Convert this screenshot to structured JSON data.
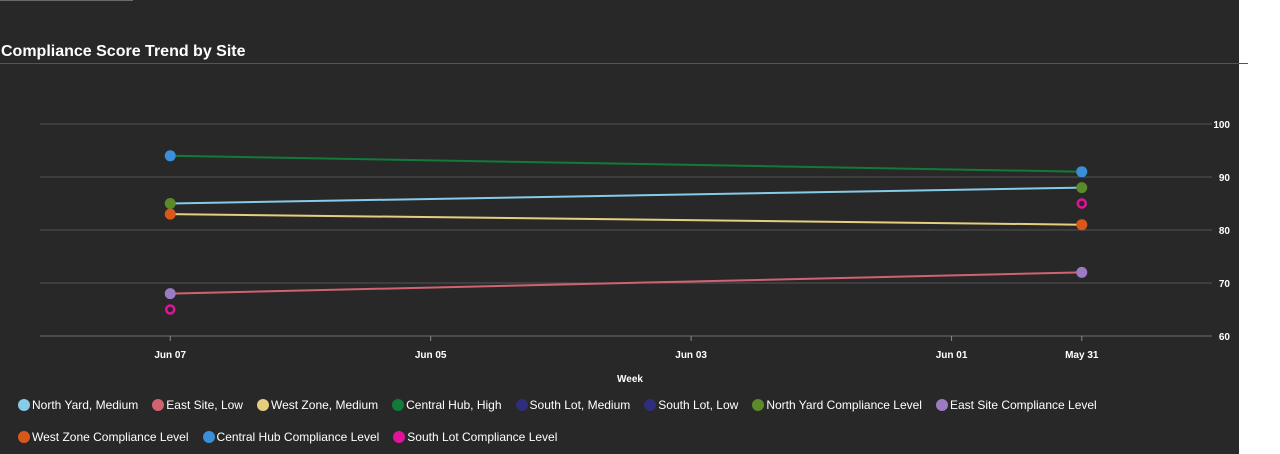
{
  "chart_data": {
    "type": "line",
    "title": "Compliance Score Trend by Site",
    "xlabel": "Week",
    "ylabel": "",
    "categories": [
      "Jun 07",
      "Jun 05",
      "Jun 03",
      "Jun 01",
      "May 31"
    ],
    "x_ticks": [
      "Jun 07",
      "Jun 05",
      "Jun 03",
      "Jun 01",
      "May 31"
    ],
    "x_range": [
      "2024-06-08",
      "2024-05-30"
    ],
    "x_reversed": true,
    "ylim": [
      60,
      100
    ],
    "y_ticks": [
      60,
      70,
      80,
      90,
      100
    ],
    "grid": true,
    "legend_position": "bottom",
    "series": [
      {
        "name": "North Yard, Medium",
        "color": "#87cbe8",
        "kind": "line",
        "points": [
          {
            "x": "2024-06-07",
            "y": 85
          },
          {
            "x": "2024-05-31",
            "y": 88
          }
        ]
      },
      {
        "name": "East Site, Low",
        "color": "#d0636f",
        "kind": "line",
        "points": [
          {
            "x": "2024-06-07",
            "y": 68
          },
          {
            "x": "2024-05-31",
            "y": 72
          }
        ]
      },
      {
        "name": "West Zone, Medium",
        "color": "#e4cf80",
        "kind": "line",
        "points": [
          {
            "x": "2024-06-07",
            "y": 83
          },
          {
            "x": "2024-05-31",
            "y": 81
          }
        ]
      },
      {
        "name": "Central Hub, High",
        "color": "#117a3a",
        "kind": "line",
        "points": [
          {
            "x": "2024-06-07",
            "y": 94
          },
          {
            "x": "2024-05-31",
            "y": 91
          }
        ]
      },
      {
        "name": "South Lot, Medium",
        "color": "#2e2e7a",
        "kind": "line",
        "points": []
      },
      {
        "name": "South Lot, Low",
        "color": "#2e2e7a",
        "kind": "line",
        "points": []
      },
      {
        "name": "North Yard Compliance Level",
        "color": "#5a8a2a",
        "kind": "marker",
        "points": [
          {
            "x": "2024-06-07",
            "y": 85
          },
          {
            "x": "2024-05-31",
            "y": 88
          }
        ]
      },
      {
        "name": "East Site Compliance Level",
        "color": "#9a7bc4",
        "kind": "marker",
        "points": [
          {
            "x": "2024-06-07",
            "y": 68
          },
          {
            "x": "2024-05-31",
            "y": 72
          }
        ]
      },
      {
        "name": "West Zone Compliance Level",
        "color": "#d8581c",
        "kind": "marker",
        "points": [
          {
            "x": "2024-06-07",
            "y": 83
          },
          {
            "x": "2024-05-31",
            "y": 81
          }
        ]
      },
      {
        "name": "Central Hub Compliance Level",
        "color": "#3a8fd8",
        "kind": "marker",
        "points": [
          {
            "x": "2024-06-07",
            "y": 94
          },
          {
            "x": "2024-05-31",
            "y": 91
          }
        ]
      },
      {
        "name": "South Lot Compliance Level",
        "color": "#e0149a",
        "kind": "ring",
        "points": [
          {
            "x": "2024-06-07",
            "y": 65
          },
          {
            "x": "2024-05-31",
            "y": 85
          }
        ]
      }
    ]
  }
}
